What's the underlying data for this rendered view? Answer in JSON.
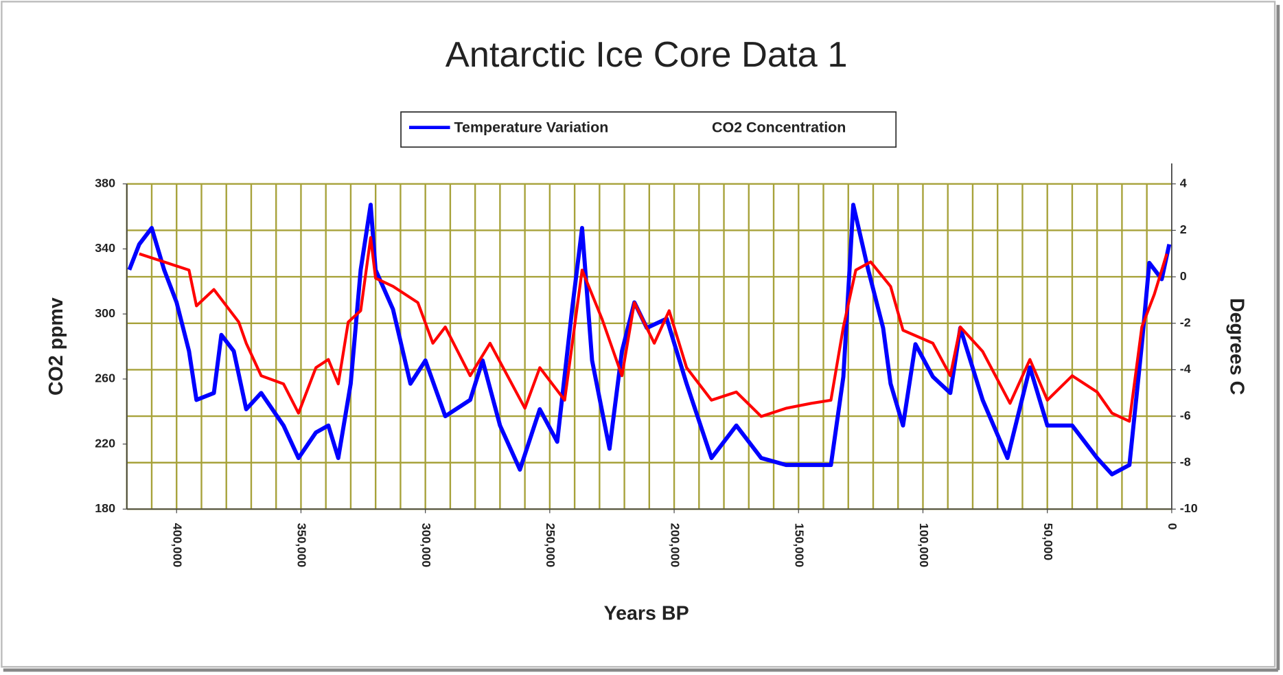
{
  "chart_data": {
    "type": "line",
    "title": "Antarctic Ice Core Data 1",
    "xlabel": "Years BP",
    "ylabel": "CO2 ppmv",
    "y2label": "Degrees C",
    "xlim": [
      420000,
      0
    ],
    "xticks": [
      {
        "value": 400000,
        "label": "400,000"
      },
      {
        "value": 350000,
        "label": "350,000"
      },
      {
        "value": 300000,
        "label": "300,000"
      },
      {
        "value": 250000,
        "label": "250,000"
      },
      {
        "value": 200000,
        "label": "200,000"
      },
      {
        "value": 150000,
        "label": "150,000"
      },
      {
        "value": 100000,
        "label": "100,000"
      },
      {
        "value": 50000,
        "label": "50,000"
      },
      0
    ],
    "xminor_ticks": [
      420000,
      410000,
      400000,
      390000,
      380000,
      370000,
      360000,
      350000,
      340000,
      330000,
      320000,
      310000,
      300000,
      290000,
      280000,
      270000,
      260000,
      250000,
      240000,
      230000,
      220000,
      210000,
      200000,
      190000,
      180000,
      170000,
      160000,
      150000,
      140000,
      130000,
      120000,
      110000,
      100000,
      90000,
      80000,
      70000,
      60000,
      50000,
      40000,
      30000,
      20000,
      10000
    ],
    "ylim": [
      180,
      380
    ],
    "yticks": [
      180,
      220,
      260,
      300,
      340,
      380
    ],
    "y2lim": [
      -10,
      4
    ],
    "y2ticks": [
      -10,
      -8,
      -6,
      -4,
      -2,
      0,
      2,
      4
    ],
    "grid": "y2",
    "grid_color": "#a7a23a",
    "legend": "top",
    "series": [
      {
        "name": "Temperature Variation",
        "color": "#0000ff",
        "axis": "y2",
        "x": [
          419000,
          415000,
          410000,
          405000,
          400000,
          395000,
          392000,
          385000,
          382000,
          377000,
          372000,
          366000,
          357000,
          351000,
          344000,
          339000,
          335000,
          330000,
          326000,
          322000,
          320000,
          313000,
          306000,
          300000,
          292000,
          282000,
          277000,
          270000,
          262000,
          254000,
          247000,
          241000,
          237000,
          233000,
          226000,
          221000,
          216000,
          211000,
          203000,
          195000,
          185000,
          175000,
          165000,
          155000,
          145000,
          137000,
          132000,
          128000,
          122000,
          116000,
          113000,
          108000,
          103000,
          96000,
          89000,
          85000,
          76000,
          66000,
          57000,
          50000,
          40000,
          30000,
          24000,
          17000,
          12000,
          9000,
          4000,
          1000
        ],
        "values": [
          0.3,
          1.4,
          2.1,
          0.3,
          -1.1,
          -3.2,
          -5.3,
          -5.0,
          -2.5,
          -3.2,
          -5.7,
          -5.0,
          -6.4,
          -7.8,
          -6.7,
          -6.4,
          -7.8,
          -4.6,
          0.3,
          3.1,
          0.3,
          -1.4,
          -4.6,
          -3.6,
          -6.0,
          -5.3,
          -3.6,
          -6.4,
          -8.3,
          -5.7,
          -7.1,
          -1.4,
          2.1,
          -3.6,
          -7.4,
          -3.2,
          -1.1,
          -2.2,
          -1.8,
          -4.6,
          -7.8,
          -6.4,
          -7.8,
          -8.1,
          -8.1,
          -8.1,
          -4.3,
          3.1,
          0.3,
          -2.2,
          -4.6,
          -6.4,
          -2.9,
          -4.3,
          -5.0,
          -2.2,
          -5.3,
          -7.8,
          -3.9,
          -6.4,
          -6.4,
          -7.8,
          -8.5,
          -8.1,
          -2.9,
          0.6,
          -0.1,
          1.4
        ]
      },
      {
        "name": "CO2 Concentration",
        "color": "#ff0000",
        "x": [
          415000,
          405000,
          395000,
          392000,
          385000,
          375000,
          372000,
          366000,
          357000,
          351000,
          344000,
          339000,
          335000,
          331000,
          326000,
          322000,
          320000,
          313000,
          303000,
          297000,
          292000,
          282000,
          274000,
          260000,
          254000,
          244000,
          237000,
          229000,
          221000,
          216000,
          208000,
          202000,
          195000,
          185000,
          175000,
          165000,
          155000,
          145000,
          137000,
          132000,
          127000,
          121000,
          113000,
          108000,
          96000,
          89000,
          85000,
          76000,
          65000,
          57000,
          50000,
          40000,
          30000,
          24000,
          17000,
          12000,
          7000,
          2000
        ],
        "values": [
          337,
          332,
          327,
          305,
          315,
          295,
          282,
          262,
          257,
          239,
          267,
          272,
          257,
          295,
          302,
          347,
          322,
          317,
          307,
          282,
          292,
          262,
          282,
          242,
          267,
          247,
          327,
          297,
          262,
          307,
          282,
          302,
          267,
          247,
          252,
          237,
          242,
          245,
          247,
          292,
          327,
          332,
          317,
          290,
          282,
          262,
          292,
          277,
          245,
          272,
          247,
          262,
          252,
          239,
          234,
          292,
          312,
          337
        ]
      }
    ]
  }
}
